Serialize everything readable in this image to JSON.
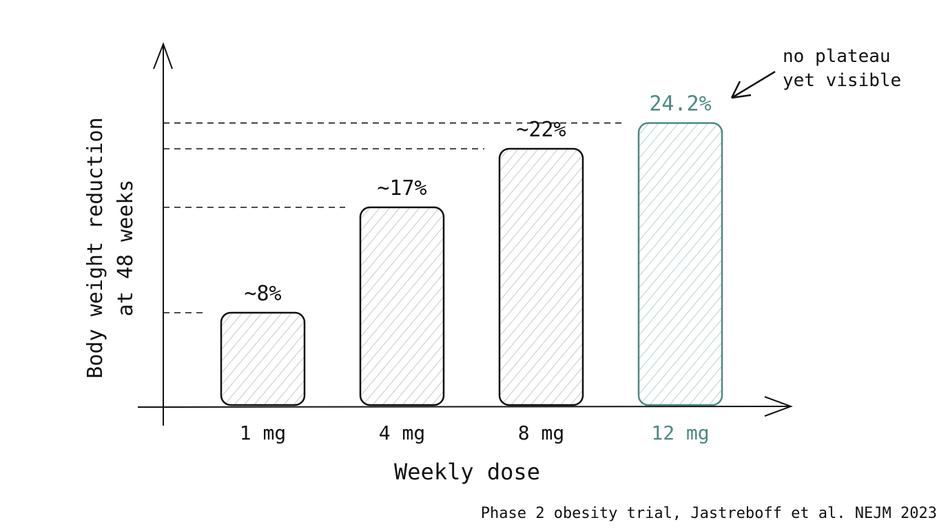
{
  "chart_data": {
    "type": "bar",
    "title": "",
    "xlabel": "Weekly dose",
    "ylabel_lines": [
      "Body weight reduction",
      "at 48 weeks"
    ],
    "categories": [
      "1 mg",
      "4 mg",
      "8 mg",
      "12 mg"
    ],
    "values": [
      8,
      17,
      22,
      24.2
    ],
    "data_labels": [
      "~8%",
      "~17%",
      "~22%",
      "24.2%"
    ],
    "highlight_index": 3,
    "ylim": [
      0,
      26
    ],
    "grid": false,
    "reference_lines": "dashed at each bar top",
    "annotation": {
      "lines": [
        "no plateau",
        "yet visible"
      ],
      "points_to": "12 mg"
    },
    "source": "Phase 2 obesity trial, Jastreboff et al. NEJM 2023",
    "colors": {
      "default": "#111111",
      "highlight": "#4a8a80",
      "hatch": "#9aa0a6"
    }
  }
}
